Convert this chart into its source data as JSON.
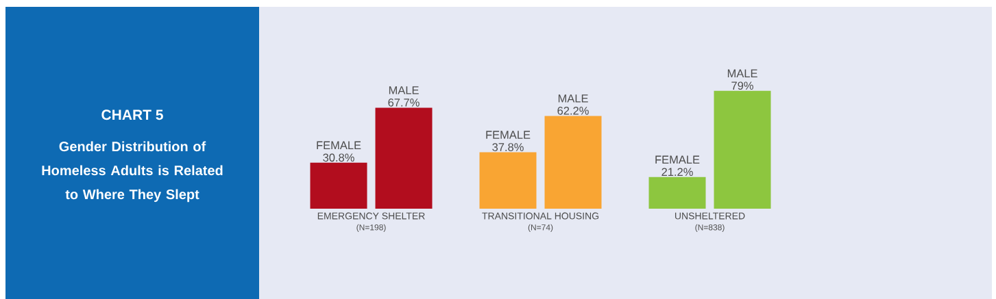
{
  "chart_data": {
    "type": "bar",
    "title": "CHART 5",
    "subtitle": "Gender Distribution of Homeless Adults is Related to Where They Slept",
    "categories": [
      "EMERGENCY SHELTER",
      "TRANSITIONAL HOUSING",
      "UNSHELTERED"
    ],
    "annotations": [
      "(N=198)",
      "(N=74)",
      "(N=838)"
    ],
    "series": [
      {
        "name": "FEMALE",
        "colors": [
          "#b20d1e",
          "#f9a533",
          "#8dc63f"
        ],
        "values": [
          30.8,
          37.8,
          21.2
        ],
        "value_labels": [
          "30.8%",
          "37.8%",
          "21.2%"
        ]
      },
      {
        "name": "MALE",
        "colors": [
          "#b20d1e",
          "#f9a533",
          "#8dc63f"
        ],
        "values": [
          67.7,
          62.2,
          79
        ],
        "value_labels": [
          "67.7%",
          "62.2%",
          "79%"
        ]
      }
    ]
  }
}
